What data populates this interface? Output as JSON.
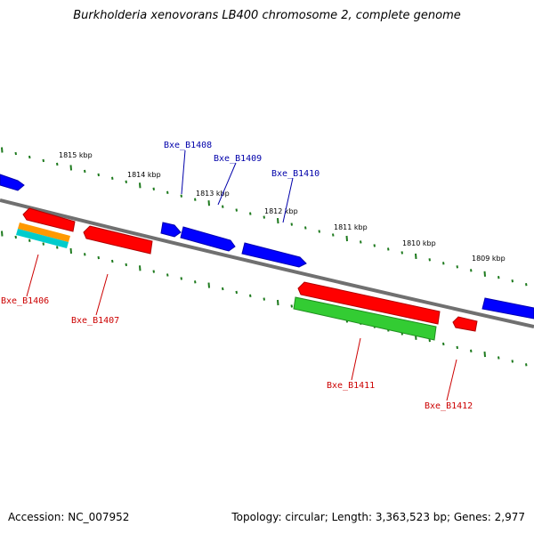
{
  "title": "Burkholderia xenovorans LB400 chromosome 2, complete genome",
  "footer": {
    "accession": "Accession: NC_007952",
    "summary": "Topology: circular; Length: 3,363,523 bp; Genes: 2,977"
  },
  "colors": {
    "backbone": "#707070",
    "tick": "#1e7a1e",
    "forward": "#0000ff",
    "reverse": "#ff0000",
    "rna_green": "#33cc33",
    "orange": "#ff9900",
    "cyan": "#00cccc",
    "label_forward": "#0000aa",
    "label_reverse": "#cc0000"
  },
  "scale_labels": [
    "1815 kbp",
    "1814 kbp",
    "1813 kbp",
    "1812 kbp",
    "1811 kbp",
    "1810 kbp",
    "1809 kbp"
  ],
  "gene_labels": [
    {
      "name": "Bxe_B1408",
      "strand": "forward"
    },
    {
      "name": "Bxe_B1409",
      "strand": "forward"
    },
    {
      "name": "Bxe_B1410",
      "strand": "forward"
    },
    {
      "name": "Bxe_B1406",
      "strand": "reverse"
    },
    {
      "name": "Bxe_B1407",
      "strand": "reverse"
    },
    {
      "name": "Bxe_B1411",
      "strand": "reverse"
    },
    {
      "name": "Bxe_B1412",
      "strand": "reverse"
    }
  ]
}
